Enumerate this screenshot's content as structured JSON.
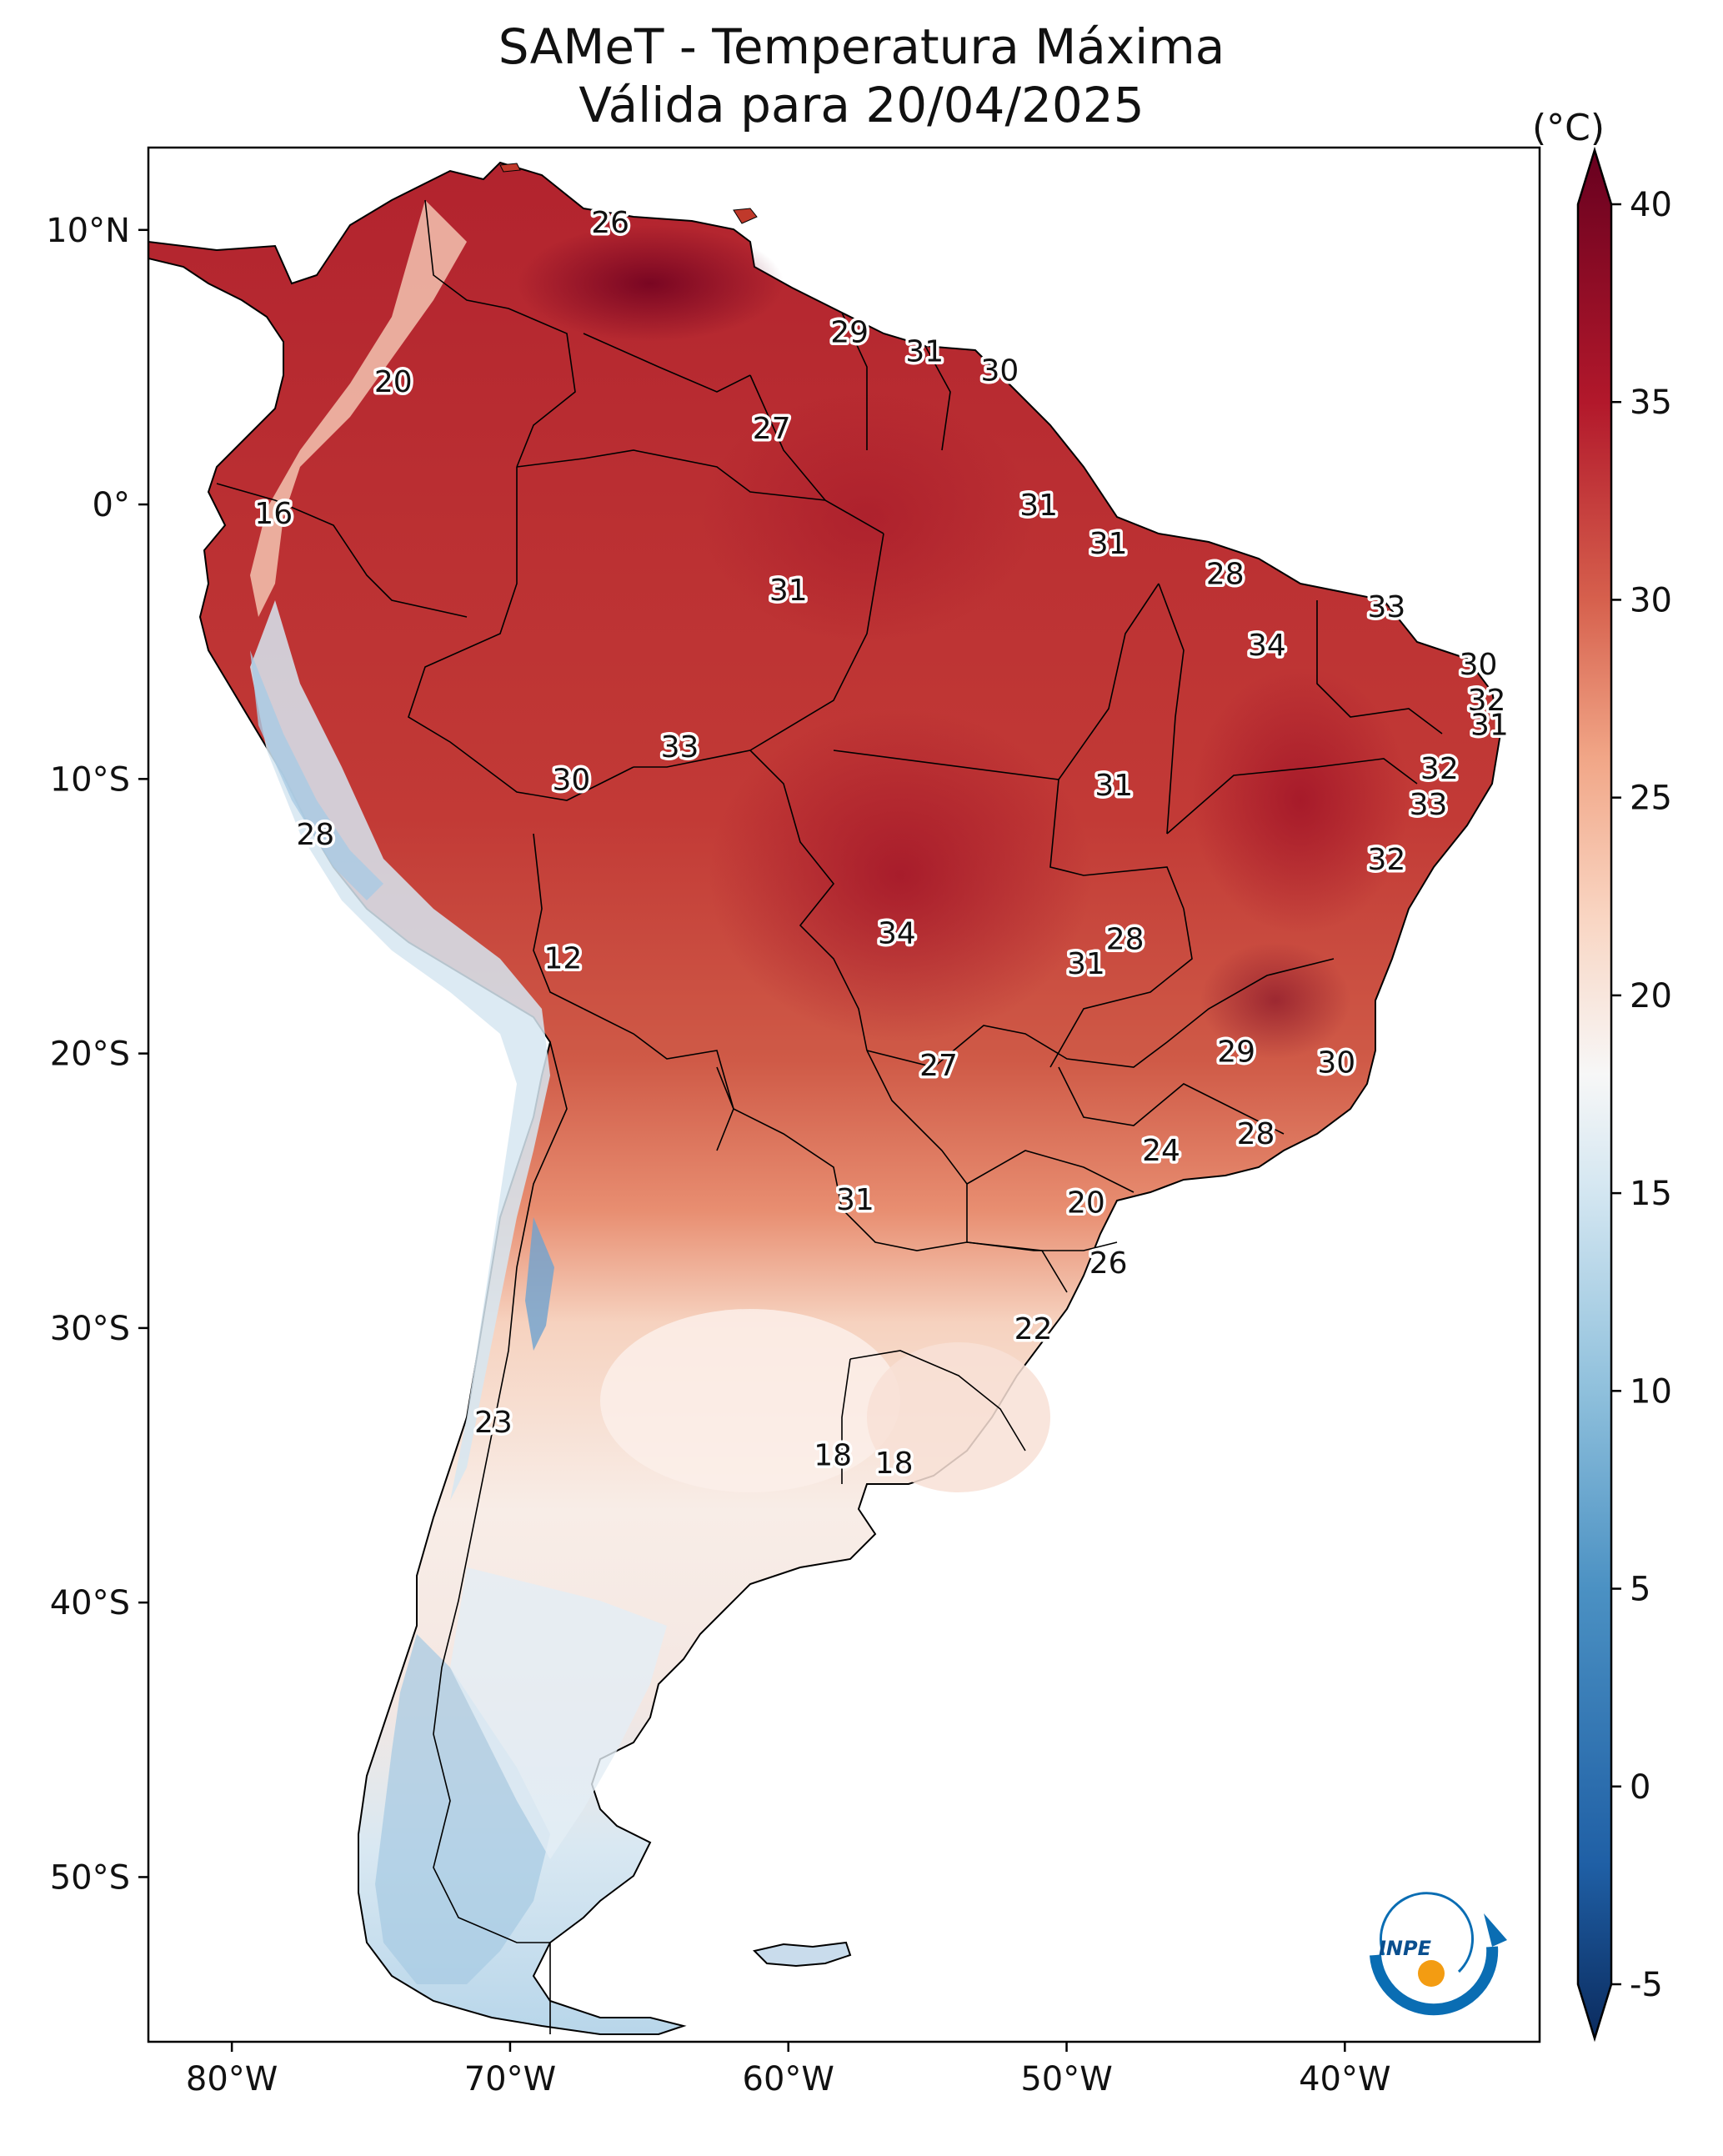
{
  "title": {
    "line1": "SAMeT - Temperatura Máxima",
    "line2": "Válida para 20/04/2025"
  },
  "axes": {
    "lat_labels": [
      "10°N",
      "0°",
      "10°S",
      "20°S",
      "30°S",
      "40°S",
      "50°S"
    ],
    "lon_labels": [
      "80°W",
      "70°W",
      "60°W",
      "50°W",
      "40°W"
    ],
    "lat_values": [
      10,
      0,
      -10,
      -20,
      -30,
      -40,
      -50
    ],
    "lon_values": [
      -80,
      -70,
      -60,
      -50,
      -40
    ],
    "lat_range": [
      -56,
      13
    ],
    "lon_range": [
      -83,
      -33
    ]
  },
  "colorbar": {
    "unit": "(°C)",
    "min": -7,
    "max": 42,
    "tick_values": [
      40,
      35,
      30,
      25,
      20,
      15,
      10,
      5,
      0,
      -5
    ],
    "tick_labels": [
      "40",
      "35",
      "30",
      "25",
      "20",
      "15",
      "10",
      "5",
      "0",
      "-5"
    ],
    "stops": [
      {
        "value": -7,
        "color": "#0b2b5e"
      },
      {
        "value": -2,
        "color": "#1f5fa5"
      },
      {
        "value": 5,
        "color": "#4b91c3"
      },
      {
        "value": 10,
        "color": "#8fc0dc"
      },
      {
        "value": 15,
        "color": "#d3e6f1"
      },
      {
        "value": 18,
        "color": "#f7f7f7"
      },
      {
        "value": 22,
        "color": "#f9d5c2"
      },
      {
        "value": 26,
        "color": "#f1a687"
      },
      {
        "value": 30,
        "color": "#d6604d"
      },
      {
        "value": 35,
        "color": "#b2182b"
      },
      {
        "value": 42,
        "color": "#67001f"
      }
    ]
  },
  "station_labels": [
    {
      "text": "26",
      "lon": -66.4,
      "lat": 10.3
    },
    {
      "text": "20",
      "lon": -74.2,
      "lat": 4.5
    },
    {
      "text": "29",
      "lon": -57.8,
      "lat": 6.3
    },
    {
      "text": "31",
      "lon": -55.1,
      "lat": 5.6
    },
    {
      "text": "30",
      "lon": -52.4,
      "lat": 4.9
    },
    {
      "text": "27",
      "lon": -60.6,
      "lat": 2.8
    },
    {
      "text": "16",
      "lon": -78.5,
      "lat": -0.3
    },
    {
      "text": "31",
      "lon": -51.0,
      "lat": 0.0
    },
    {
      "text": "31",
      "lon": -48.5,
      "lat": -1.4
    },
    {
      "text": "31",
      "lon": -60.0,
      "lat": -3.1
    },
    {
      "text": "28",
      "lon": -44.3,
      "lat": -2.5
    },
    {
      "text": "33",
      "lon": -38.5,
      "lat": -3.7
    },
    {
      "text": "34",
      "lon": -42.8,
      "lat": -5.1
    },
    {
      "text": "30",
      "lon": -35.2,
      "lat": -5.8
    },
    {
      "text": "32",
      "lon": -34.9,
      "lat": -7.1
    },
    {
      "text": "31",
      "lon": -34.8,
      "lat": -8.0
    },
    {
      "text": "33",
      "lon": -63.9,
      "lat": -8.8
    },
    {
      "text": "30",
      "lon": -67.8,
      "lat": -10.0
    },
    {
      "text": "31",
      "lon": -48.3,
      "lat": -10.2
    },
    {
      "text": "32",
      "lon": -36.6,
      "lat": -9.6
    },
    {
      "text": "33",
      "lon": -37.0,
      "lat": -10.9
    },
    {
      "text": "28",
      "lon": -77.0,
      "lat": -12.0
    },
    {
      "text": "32",
      "lon": -38.5,
      "lat": -12.9
    },
    {
      "text": "12",
      "lon": -68.1,
      "lat": -16.5
    },
    {
      "text": "34",
      "lon": -56.1,
      "lat": -15.6
    },
    {
      "text": "28",
      "lon": -47.9,
      "lat": -15.8
    },
    {
      "text": "31",
      "lon": -49.3,
      "lat": -16.7
    },
    {
      "text": "29",
      "lon": -43.9,
      "lat": -19.9
    },
    {
      "text": "30",
      "lon": -40.3,
      "lat": -20.3
    },
    {
      "text": "27",
      "lon": -54.6,
      "lat": -20.4
    },
    {
      "text": "28",
      "lon": -43.2,
      "lat": -22.9
    },
    {
      "text": "24",
      "lon": -46.6,
      "lat": -23.5
    },
    {
      "text": "31",
      "lon": -57.6,
      "lat": -25.3
    },
    {
      "text": "20",
      "lon": -49.3,
      "lat": -25.4
    },
    {
      "text": "26",
      "lon": -48.5,
      "lat": -27.6
    },
    {
      "text": "22",
      "lon": -51.2,
      "lat": -30.0
    },
    {
      "text": "23",
      "lon": -70.6,
      "lat": -33.4
    },
    {
      "text": "18",
      "lon": -58.4,
      "lat": -34.6
    },
    {
      "text": "18",
      "lon": -56.2,
      "lat": -34.9
    }
  ],
  "logo": {
    "text": "INPE"
  }
}
